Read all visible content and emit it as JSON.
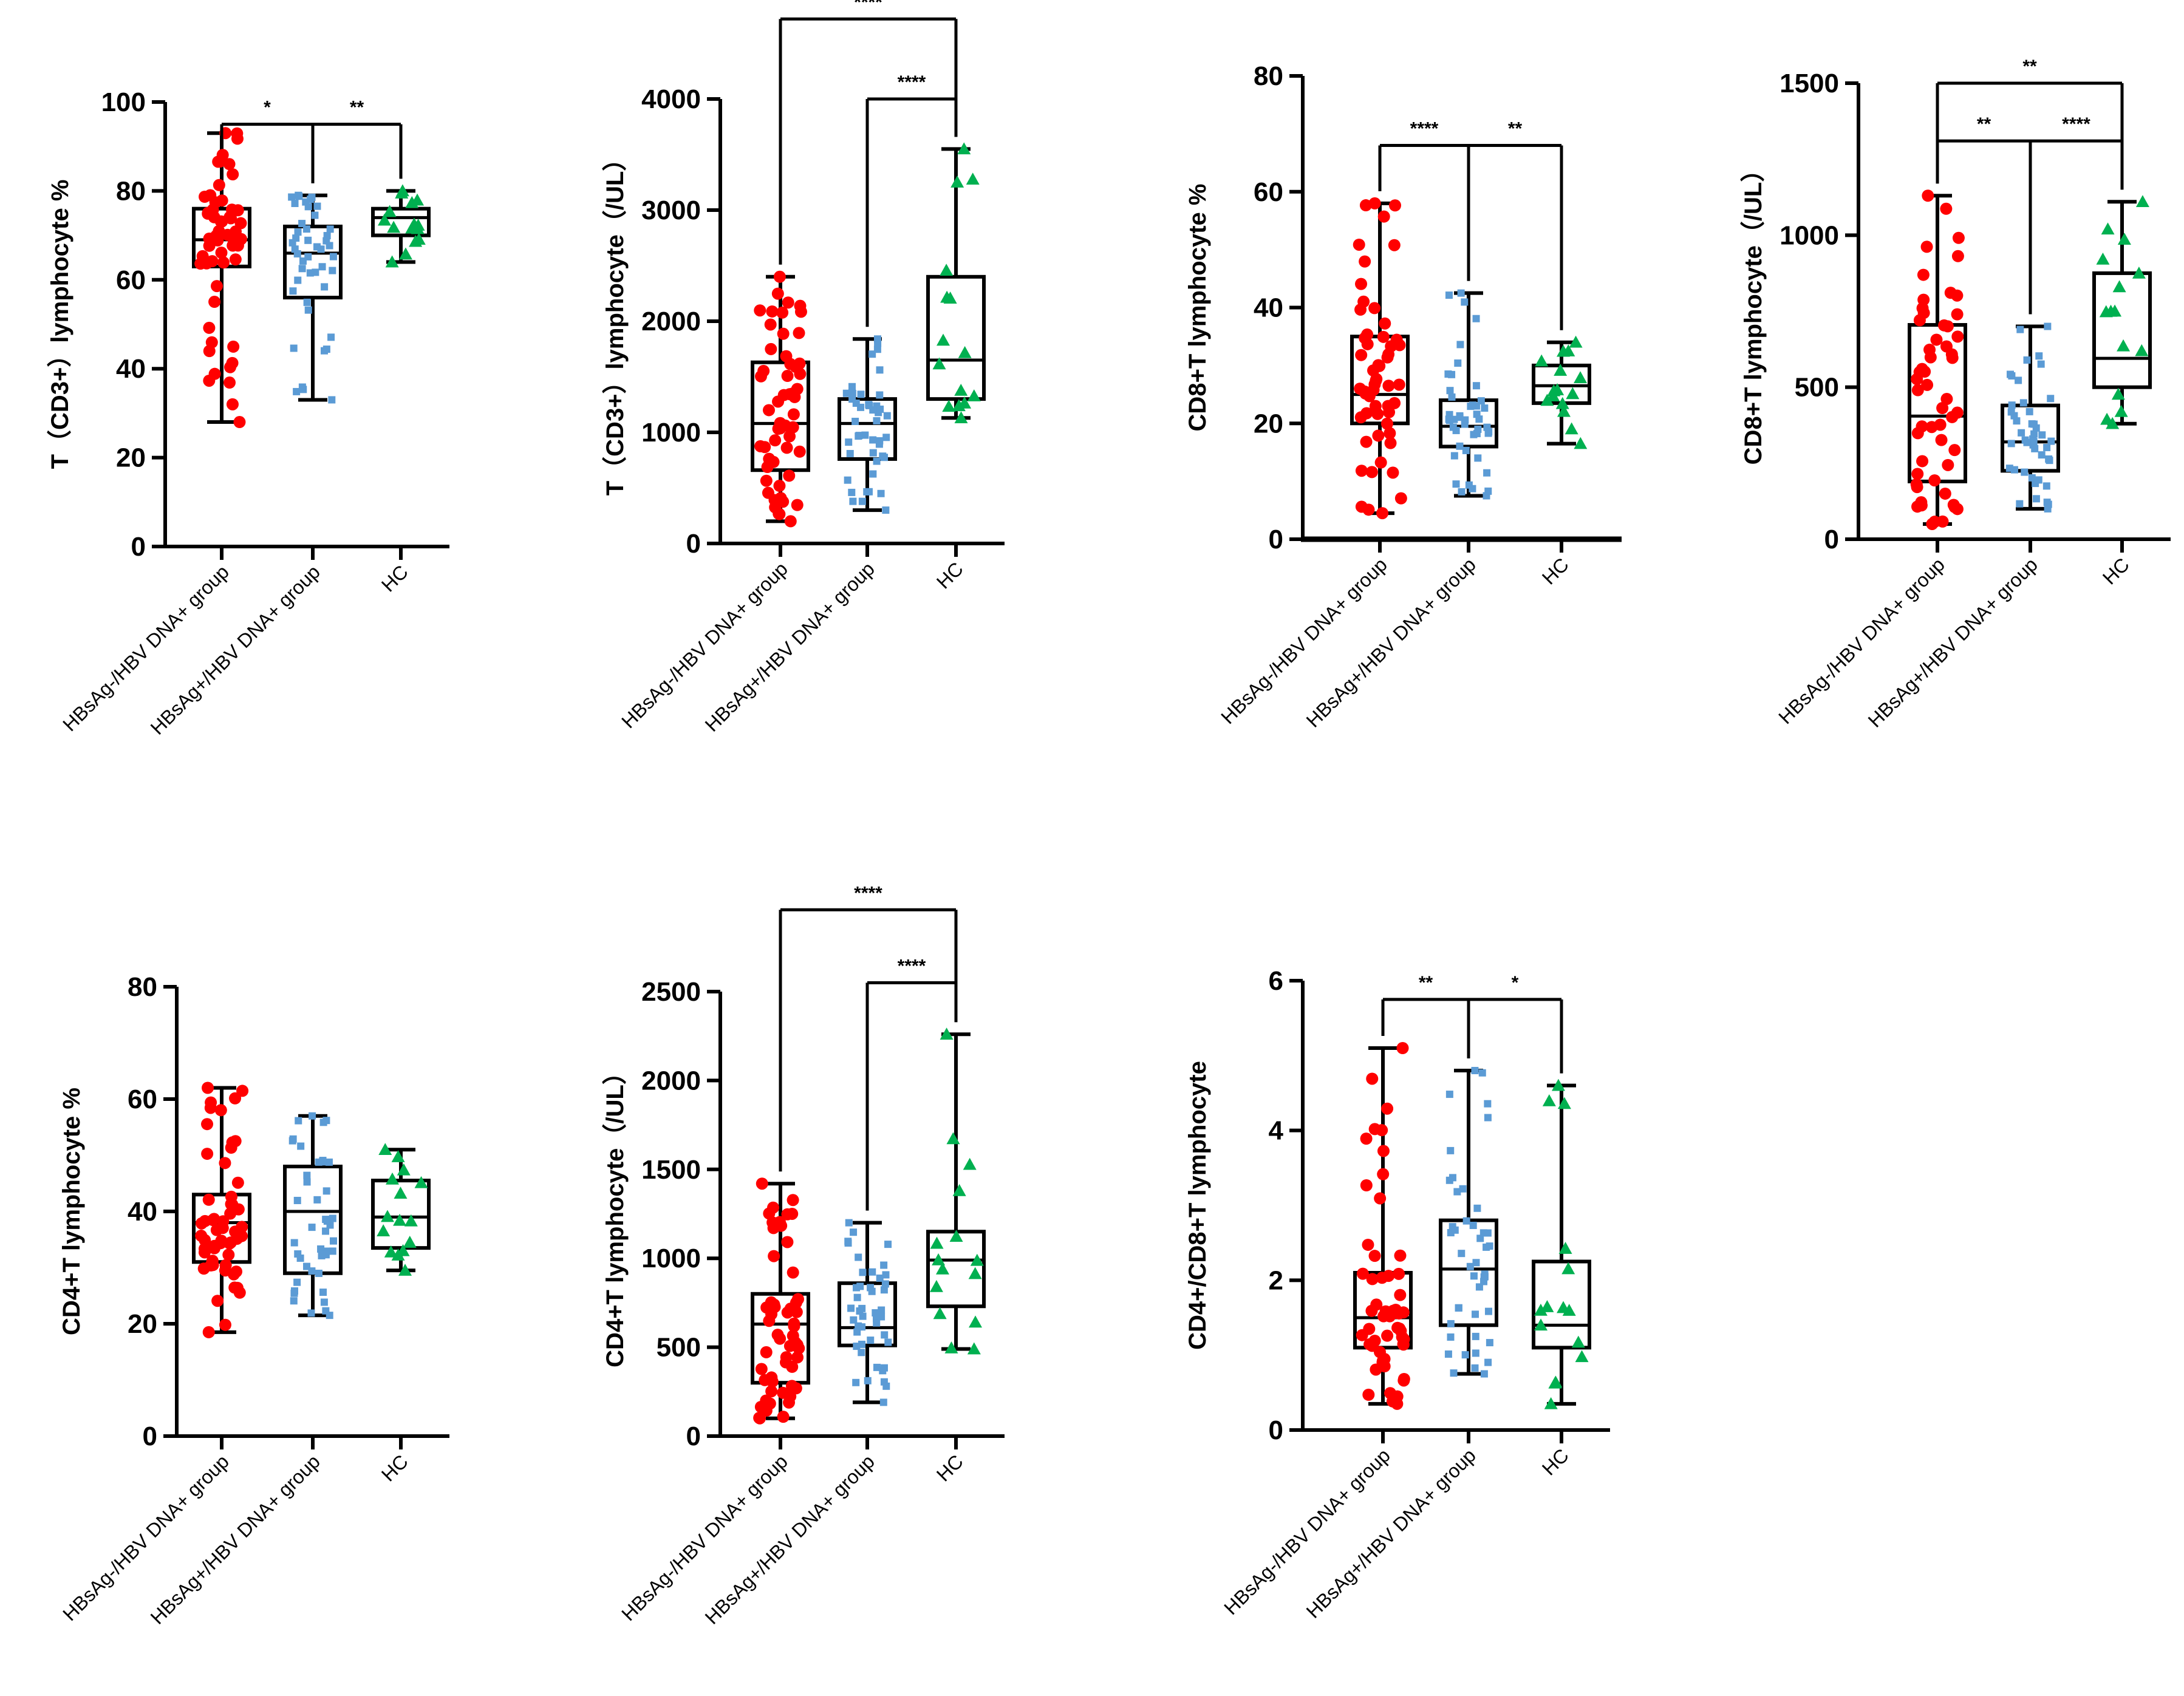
{
  "colors": {
    "group1": "#ff0000",
    "group2": "#5b9bd5",
    "hc": "#00b050",
    "axis": "#000000"
  },
  "chart_data": [
    {
      "type": "box",
      "id": "cd3-percent",
      "ylabel": "T（CD3+）lymphocyte %",
      "ylim": [
        0,
        100
      ],
      "yticks": [
        0,
        20,
        40,
        60,
        80,
        100
      ],
      "categories": [
        "HBsAg-/HBV DNA+ group",
        "HBsAg+/HBV DNA+ group",
        "HC"
      ],
      "series": [
        {
          "name": "HBsAg-/HBV DNA+ group",
          "marker": "circle",
          "color": "group1",
          "min": 28,
          "q1": 63,
          "median": 69,
          "q3": 76,
          "max": 93,
          "n": 55
        },
        {
          "name": "HBsAg+/HBV DNA+ group",
          "marker": "square",
          "color": "group2",
          "min": 33,
          "q1": 56,
          "median": 66,
          "q3": 72,
          "max": 79,
          "n": 45
        },
        {
          "name": "HC",
          "marker": "triangle",
          "color": "hc",
          "min": 64,
          "q1": 70,
          "median": 74,
          "q3": 76,
          "max": 80,
          "n": 15
        }
      ],
      "significance": [
        {
          "from": 0,
          "to": 1,
          "label": "*",
          "y": 95
        },
        {
          "from": 1,
          "to": 2,
          "label": "**",
          "y": 95
        }
      ]
    },
    {
      "type": "box",
      "id": "cd3-count",
      "ylabel": "T（CD3+）lymphocyte（/UL）",
      "ylim": [
        0,
        4000
      ],
      "yticks": [
        0,
        1000,
        2000,
        3000,
        4000
      ],
      "categories": [
        "HBsAg-/HBV DNA+ group",
        "HBsAg+/HBV DNA+ group",
        "HC"
      ],
      "series": [
        {
          "name": "HBsAg-/HBV DNA+ group",
          "marker": "circle",
          "color": "group1",
          "min": 200,
          "q1": 660,
          "median": 1080,
          "q3": 1630,
          "max": 2400,
          "n": 55
        },
        {
          "name": "HBsAg+/HBV DNA+ group",
          "marker": "square",
          "color": "group2",
          "min": 300,
          "q1": 760,
          "median": 1080,
          "q3": 1300,
          "max": 1840,
          "n": 45
        },
        {
          "name": "HC",
          "marker": "triangle",
          "color": "hc",
          "min": 1130,
          "q1": 1300,
          "median": 1650,
          "q3": 2400,
          "max": 3550,
          "n": 15
        }
      ],
      "significance": [
        {
          "from": 0,
          "to": 2,
          "label": "****",
          "y": 4720
        },
        {
          "from": 1,
          "to": 2,
          "label": "****",
          "y": 4000
        }
      ]
    },
    {
      "type": "box",
      "id": "cd8-percent",
      "ylabel": "CD8+T lymphocyte %",
      "ylim": [
        0,
        80
      ],
      "yticks": [
        0,
        20,
        40,
        60,
        80
      ],
      "categories": [
        "HBsAg-/HBV DNA+ group",
        "HBsAg+/HBV DNA+ group",
        "HC"
      ],
      "series": [
        {
          "name": "HBsAg-/HBV DNA+ group",
          "marker": "circle",
          "color": "group1",
          "min": 4.5,
          "q1": 20,
          "median": 25,
          "q3": 35,
          "max": 58,
          "n": 55
        },
        {
          "name": "HBsAg+/HBV DNA+ group",
          "marker": "square",
          "color": "group2",
          "min": 7.5,
          "q1": 16,
          "median": 19.5,
          "q3": 24,
          "max": 42.5,
          "n": 45
        },
        {
          "name": "HC",
          "marker": "triangle",
          "color": "hc",
          "min": 16.5,
          "q1": 23.5,
          "median": 26.5,
          "q3": 30,
          "max": 34,
          "n": 15
        }
      ],
      "significance": [
        {
          "from": 0,
          "to": 1,
          "label": "****",
          "y": 68
        },
        {
          "from": 1,
          "to": 2,
          "label": "**",
          "y": 68
        }
      ]
    },
    {
      "type": "box",
      "id": "cd8-count",
      "ylabel": "CD8+T lymphocyte（/UL）",
      "ylim": [
        0,
        1500
      ],
      "yticks": [
        0,
        500,
        1000,
        1500
      ],
      "categories": [
        "HBsAg-/HBV DNA+ group",
        "HBsAg+/HBV DNA+ group",
        "HC"
      ],
      "series": [
        {
          "name": "HBsAg-/HBV DNA+ group",
          "marker": "circle",
          "color": "group1",
          "min": 50,
          "q1": 190,
          "median": 405,
          "q3": 705,
          "max": 1130,
          "n": 55
        },
        {
          "name": "HBsAg+/HBV DNA+ group",
          "marker": "square",
          "color": "group2",
          "min": 100,
          "q1": 225,
          "median": 320,
          "q3": 440,
          "max": 700,
          "n": 45
        },
        {
          "name": "HC",
          "marker": "triangle",
          "color": "hc",
          "min": 380,
          "q1": 500,
          "median": 595,
          "q3": 875,
          "max": 1110,
          "n": 15
        }
      ],
      "significance": [
        {
          "from": 0,
          "to": 2,
          "label": "**",
          "y": 1500
        },
        {
          "from": 0,
          "to": 1,
          "label": "**",
          "y": 1310
        },
        {
          "from": 1,
          "to": 2,
          "label": "****",
          "y": 1310
        }
      ]
    },
    {
      "type": "box",
      "id": "cd4-percent",
      "ylabel": "CD4+T lymphocyte %",
      "ylim": [
        0,
        80
      ],
      "yticks": [
        0,
        20,
        40,
        60,
        80
      ],
      "categories": [
        "HBsAg-/HBV DNA+ group",
        "HBsAg+/HBV DNA+ group",
        "HC"
      ],
      "series": [
        {
          "name": "HBsAg-/HBV DNA+ group",
          "marker": "circle",
          "color": "group1",
          "min": 18.5,
          "q1": 31,
          "median": 38,
          "q3": 43,
          "max": 62,
          "n": 55
        },
        {
          "name": "HBsAg+/HBV DNA+ group",
          "marker": "square",
          "color": "group2",
          "min": 21.5,
          "q1": 29,
          "median": 40,
          "q3": 48,
          "max": 57,
          "n": 45
        },
        {
          "name": "HC",
          "marker": "triangle",
          "color": "hc",
          "min": 29.5,
          "q1": 33.5,
          "median": 39,
          "q3": 45.5,
          "max": 51,
          "n": 15
        }
      ],
      "significance": []
    },
    {
      "type": "box",
      "id": "cd4-count",
      "ylabel": "CD4+T lymphocyte（/UL）",
      "ylim": [
        0,
        2500
      ],
      "yticks": [
        0,
        500,
        1000,
        1500,
        2000,
        2500
      ],
      "categories": [
        "HBsAg-/HBV DNA+ group",
        "HBsAg+/HBV DNA+ group",
        "HC"
      ],
      "series": [
        {
          "name": "HBsAg-/HBV DNA+ group",
          "marker": "circle",
          "color": "group1",
          "min": 100,
          "q1": 300,
          "median": 630,
          "q3": 800,
          "max": 1420,
          "n": 55
        },
        {
          "name": "HBsAg+/HBV DNA+ group",
          "marker": "square",
          "color": "group2",
          "min": 190,
          "q1": 510,
          "median": 610,
          "q3": 860,
          "max": 1200,
          "n": 45
        },
        {
          "name": "HC",
          "marker": "triangle",
          "color": "hc",
          "min": 490,
          "q1": 730,
          "median": 990,
          "q3": 1150,
          "max": 2260,
          "n": 15
        }
      ],
      "significance": [
        {
          "from": 0,
          "to": 2,
          "label": "****",
          "y": 2960
        },
        {
          "from": 1,
          "to": 2,
          "label": "****",
          "y": 2550
        }
      ]
    },
    {
      "type": "box",
      "id": "cd4-cd8-ratio",
      "ylabel": "CD4+/CD8+T lymphocyte",
      "ylim": [
        0,
        6
      ],
      "yticks": [
        0,
        2,
        4,
        6
      ],
      "categories": [
        "HBsAg-/HBV DNA+ group",
        "HBsAg+/HBV DNA+ group",
        "HC"
      ],
      "series": [
        {
          "name": "HBsAg-/HBV DNA+ group",
          "marker": "circle",
          "color": "group1",
          "min": 0.35,
          "q1": 1.1,
          "median": 1.5,
          "q3": 2.1,
          "max": 5.1,
          "n": 55
        },
        {
          "name": "HBsAg+/HBV DNA+ group",
          "marker": "square",
          "color": "group2",
          "min": 0.75,
          "q1": 1.4,
          "median": 2.15,
          "q3": 2.8,
          "max": 4.8,
          "n": 45
        },
        {
          "name": "HC",
          "marker": "triangle",
          "color": "hc",
          "min": 0.35,
          "q1": 1.1,
          "median": 1.4,
          "q3": 2.25,
          "max": 4.6,
          "n": 15
        }
      ],
      "significance": [
        {
          "from": 0,
          "to": 1,
          "label": "**",
          "y": 5.75
        },
        {
          "from": 1,
          "to": 2,
          "label": "*",
          "y": 5.75
        }
      ]
    }
  ]
}
